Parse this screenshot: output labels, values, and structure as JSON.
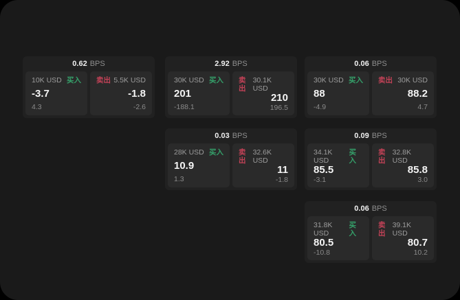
{
  "colors": {
    "buy_accent": "#35a06a",
    "sell_accent": "#c24257",
    "page_bg": "#1a1a1a",
    "card_bg": "#212121",
    "panel_bg": "#2a2a2a"
  },
  "cards": [
    {
      "bps_value": "0.62",
      "bps_unit": "BPS",
      "buy": {
        "notional": "10K USD",
        "side_label": "买入",
        "price": "-3.7",
        "sub": "4.3"
      },
      "sell": {
        "notional": "5.5K USD",
        "side_label": "卖出",
        "price": "-1.8",
        "sub": "-2.6"
      }
    },
    {
      "bps_value": "2.92",
      "bps_unit": "BPS",
      "buy": {
        "notional": "30K USD",
        "side_label": "买入",
        "price": "201",
        "sub": "-188.1"
      },
      "sell": {
        "notional": "30.1K USD",
        "side_label": "卖出",
        "price": "210",
        "sub": "196.5"
      }
    },
    {
      "bps_value": "0.06",
      "bps_unit": "BPS",
      "buy": {
        "notional": "30K USD",
        "side_label": "买入",
        "price": "88",
        "sub": "-4.9"
      },
      "sell": {
        "notional": "30K USD",
        "side_label": "卖出",
        "price": "88.2",
        "sub": "4.7"
      }
    },
    {
      "bps_value": "0.03",
      "bps_unit": "BPS",
      "buy": {
        "notional": "28K USD",
        "side_label": "买入",
        "price": "10.9",
        "sub": "1.3"
      },
      "sell": {
        "notional": "32.6K USD",
        "side_label": "卖出",
        "price": "11",
        "sub": "-1.8"
      }
    },
    {
      "bps_value": "0.09",
      "bps_unit": "BPS",
      "buy": {
        "notional": "34.1K USD",
        "side_label": "买入",
        "price": "85.5",
        "sub": "-3.1"
      },
      "sell": {
        "notional": "32.8K USD",
        "side_label": "卖出",
        "price": "85.8",
        "sub": "3.0"
      }
    },
    {
      "bps_value": "0.06",
      "bps_unit": "BPS",
      "buy": {
        "notional": "31.8K USD",
        "side_label": "买入",
        "price": "80.5",
        "sub": "-10.8"
      },
      "sell": {
        "notional": "39.1K USD",
        "side_label": "卖出",
        "price": "80.7",
        "sub": "10.2"
      }
    }
  ]
}
